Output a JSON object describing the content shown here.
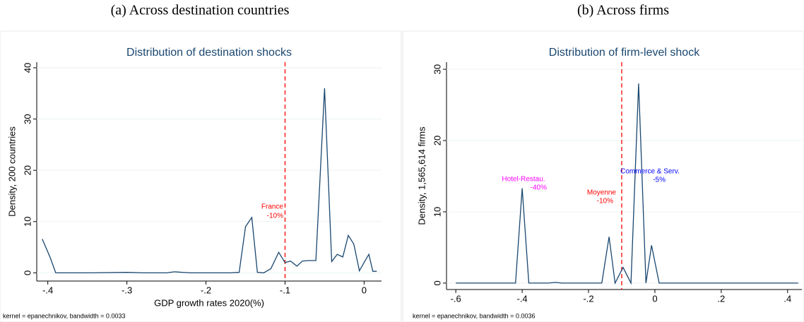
{
  "headers": [
    "(a) Across destination countries",
    "(b) Across firms"
  ],
  "chart_data": [
    {
      "type": "line",
      "title": "Distribution of destination shocks",
      "x_label": "GDP growth rates 2020(%)",
      "y_label": "Density, 200 countries",
      "note": "kernel = epanechnikov, bandwidth = 0.0033",
      "x": [
        -0.407,
        -0.397,
        -0.39,
        -0.35,
        -0.3,
        -0.28,
        -0.25,
        -0.24,
        -0.22,
        -0.2,
        -0.17,
        -0.158,
        -0.15,
        -0.142,
        -0.135,
        -0.127,
        -0.118,
        -0.108,
        -0.1,
        -0.093,
        -0.085,
        -0.078,
        -0.07,
        -0.061,
        -0.05,
        -0.041,
        -0.034,
        -0.027,
        -0.02,
        -0.013,
        -0.006,
        0.001,
        0.006,
        0.011,
        0.016
      ],
      "series": [
        {
          "name": "Density",
          "color": "#1a476f",
          "values": [
            6.6,
            3.0,
            0,
            0,
            0.1,
            0,
            0,
            0.2,
            0,
            0,
            0,
            0.1,
            9,
            10.8,
            0.1,
            0,
            0.8,
            4,
            2,
            2.3,
            1.3,
            2.3,
            2.4,
            2.4,
            36,
            2.2,
            3.6,
            3.1,
            7.3,
            5.6,
            0.4,
            2.3,
            3.6,
            0.3,
            0.3
          ]
        }
      ],
      "vline": -0.1,
      "vline_color": "#ff0000",
      "annotations": [
        {
          "lines": [
            "France",
            "-10%"
          ],
          "color": "#ff0000"
        }
      ],
      "xlim": [
        -0.414,
        0.022
      ],
      "ylim": [
        -1.6,
        41.1
      ],
      "xticks": [
        {
          "value": -0.4,
          "label": "-.4"
        },
        {
          "value": -0.3,
          "label": "-.3"
        },
        {
          "value": -0.2,
          "label": "-.2"
        },
        {
          "value": -0.1,
          "label": "-.1"
        },
        0
      ],
      "yticks": [
        0,
        10,
        20,
        30,
        40
      ]
    },
    {
      "type": "line",
      "title": "Distribution of firm-level shock",
      "y_label": "Density, 1,565,614 firms",
      "note": "kernel = epanechnikov, bandwidth = 0.0036",
      "x": [
        -0.6,
        -0.42,
        -0.4,
        -0.38,
        -0.32,
        -0.3,
        -0.28,
        -0.16,
        -0.138,
        -0.12,
        -0.096,
        -0.072,
        -0.049,
        -0.027,
        -0.01,
        0.013,
        0.2,
        0.432
      ],
      "series": [
        {
          "name": "Density",
          "color": "#1a476f",
          "values": [
            0,
            0,
            13.3,
            0,
            0,
            0.1,
            0,
            0,
            6.5,
            0,
            2.2,
            0,
            28,
            0,
            5.3,
            0,
            0,
            0
          ]
        }
      ],
      "vline": -0.1,
      "vline_color": "#ff0000",
      "annotations": [
        {
          "lines": [
            "Hotel-Restau.",
            "-40%"
          ],
          "color": "#ff00ff"
        },
        {
          "lines": [
            "Moyenne",
            "-10%"
          ],
          "color": "#ff0000"
        },
        {
          "lines": [
            "Commerce & Serv.",
            "-5%"
          ],
          "color": "#0000ff"
        }
      ],
      "xlim": [
        -0.628,
        0.443
      ],
      "ylim": [
        -0.9,
        31
      ],
      "xticks": [
        {
          "value": -0.6,
          "label": "-.6"
        },
        {
          "value": -0.4,
          "label": "-.4"
        },
        {
          "value": -0.2,
          "label": "-.2"
        },
        0,
        {
          "value": 0.2,
          "label": ".2"
        },
        {
          "value": 0.4,
          "label": ".4"
        }
      ],
      "yticks": [
        0,
        10,
        20,
        30
      ]
    }
  ]
}
